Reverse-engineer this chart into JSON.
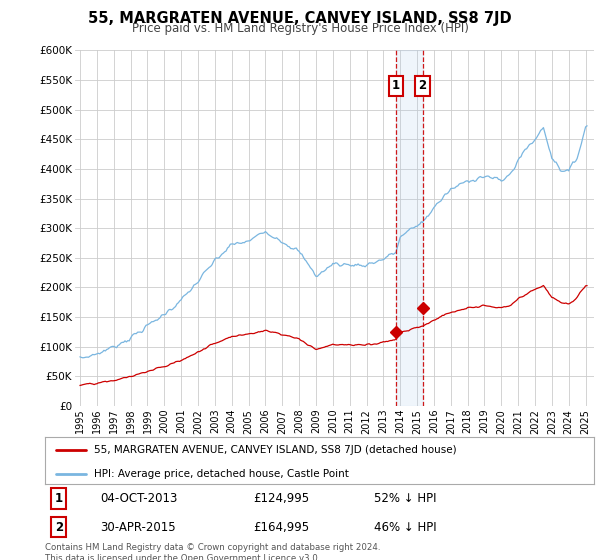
{
  "title": "55, MARGRATEN AVENUE, CANVEY ISLAND, SS8 7JD",
  "subtitle": "Price paid vs. HM Land Registry's House Price Index (HPI)",
  "ylabel_ticks": [
    "£0",
    "£50K",
    "£100K",
    "£150K",
    "£200K",
    "£250K",
    "£300K",
    "£350K",
    "£400K",
    "£450K",
    "£500K",
    "£550K",
    "£600K"
  ],
  "ytick_values": [
    0,
    50000,
    100000,
    150000,
    200000,
    250000,
    300000,
    350000,
    400000,
    450000,
    500000,
    550000,
    600000
  ],
  "ylim": [
    0,
    600000
  ],
  "hpi_color": "#7ab6e0",
  "price_color": "#cc0000",
  "vline_color": "#cc0000",
  "purchase1": {
    "date_num": 2013.75,
    "price": 124995,
    "label": "1"
  },
  "purchase2": {
    "date_num": 2015.33,
    "price": 164995,
    "label": "2"
  },
  "legend_entries": [
    "55, MARGRATEN AVENUE, CANVEY ISLAND, SS8 7JD (detached house)",
    "HPI: Average price, detached house, Castle Point"
  ],
  "table_rows": [
    [
      "1",
      "04-OCT-2013",
      "£124,995",
      "52% ↓ HPI"
    ],
    [
      "2",
      "30-APR-2015",
      "£164,995",
      "46% ↓ HPI"
    ]
  ],
  "footer": "Contains HM Land Registry data © Crown copyright and database right 2024.\nThis data is licensed under the Open Government Licence v3.0.",
  "background_color": "#ffffff",
  "grid_color": "#cccccc"
}
